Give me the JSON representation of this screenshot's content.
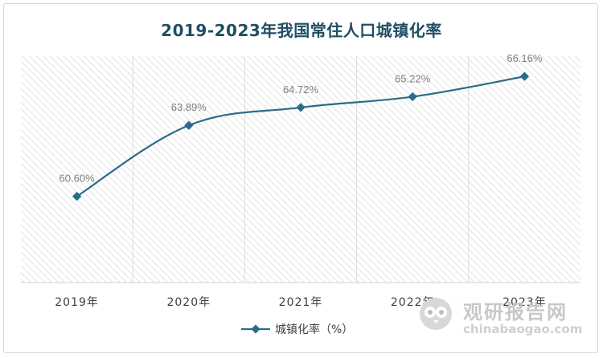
{
  "chart_data": {
    "type": "line",
    "title": "2019-2023年我国常住人口城镇化率",
    "categories": [
      "2019年",
      "2020年",
      "2021年",
      "2022年",
      "2023年"
    ],
    "series": [
      {
        "name": "城镇化率（%）",
        "values": [
          60.6,
          63.89,
          64.72,
          65.22,
          66.16
        ],
        "labels": [
          "60.60%",
          "63.89%",
          "64.72%",
          "65.22%",
          "66.16%"
        ]
      }
    ],
    "ylim": [
      56.6,
      67.1
    ],
    "grid": false,
    "legend_position": "bottom",
    "colors": {
      "line": "#2b6b89",
      "title": "#1f4e63",
      "label": "#7f7f7f",
      "axis": "#404040"
    }
  },
  "watermark": {
    "name": "观研报告网",
    "url": "chinabaogao.com",
    "logo_icon": "owl-logo-icon"
  }
}
